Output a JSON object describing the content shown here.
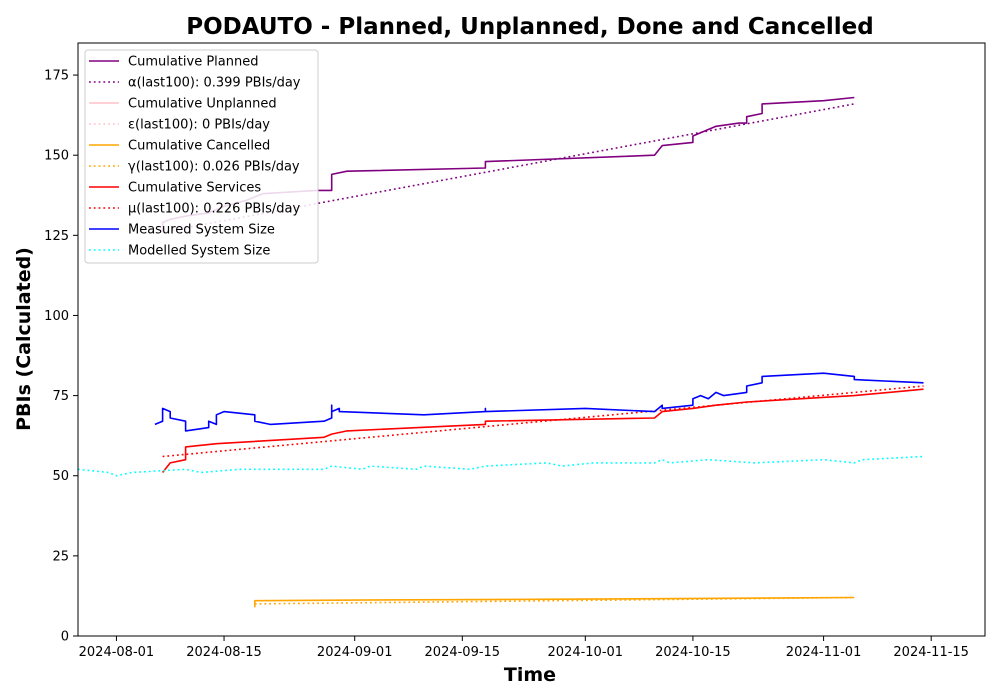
{
  "chart_data": {
    "type": "line",
    "title": "PODAUTO - Planned, Unplanned, Done  and Cancelled",
    "xlabel": "Time",
    "ylabel": "PBIs (Calculated)",
    "xlim": [
      "2024-07-27",
      "2024-11-22"
    ],
    "ylim": [
      0,
      185
    ],
    "x_ticks": [
      "2024-08-01",
      "2024-08-15",
      "2024-09-01",
      "2024-09-15",
      "2024-10-01",
      "2024-10-15",
      "2024-11-01",
      "2024-11-15"
    ],
    "y_ticks": [
      0,
      25,
      50,
      75,
      100,
      125,
      150,
      175
    ],
    "grid": false,
    "legend_position": "top-left",
    "series": [
      {
        "name": "Cumulative Planned",
        "color": "#800080",
        "style": "solid",
        "points": [
          [
            "2024-08-07",
            126
          ],
          [
            "2024-08-07",
            129
          ],
          [
            "2024-08-08",
            130
          ],
          [
            "2024-08-10",
            131
          ],
          [
            "2024-08-13",
            132
          ],
          [
            "2024-08-15",
            134
          ],
          [
            "2024-08-18",
            136
          ],
          [
            "2024-08-20",
            138
          ],
          [
            "2024-08-27",
            139
          ],
          [
            "2024-08-29",
            139
          ],
          [
            "2024-08-29",
            144
          ],
          [
            "2024-08-31",
            145
          ],
          [
            "2024-09-18",
            146
          ],
          [
            "2024-09-18",
            148
          ],
          [
            "2024-10-10",
            150
          ],
          [
            "2024-10-11",
            153
          ],
          [
            "2024-10-15",
            154
          ],
          [
            "2024-10-15",
            156
          ],
          [
            "2024-10-17",
            158
          ],
          [
            "2024-10-18",
            159
          ],
          [
            "2024-10-21",
            160
          ],
          [
            "2024-10-22",
            160
          ],
          [
            "2024-10-22",
            162
          ],
          [
            "2024-10-24",
            163
          ],
          [
            "2024-10-24",
            166
          ],
          [
            "2024-11-01",
            167
          ],
          [
            "2024-11-05",
            168
          ]
        ]
      },
      {
        "name": "α(last100): 0.399 PBIs/day",
        "color": "#800080",
        "style": "dotted",
        "points": [
          [
            "2024-08-07",
            126
          ],
          [
            "2024-11-05",
            166
          ]
        ]
      },
      {
        "name": "Cumulative Unplanned",
        "color": "#ffc0cb",
        "style": "solid",
        "points": []
      },
      {
        "name": "ε(last100): 0 PBIs/day",
        "color": "#ffc0cb",
        "style": "dotted",
        "points": []
      },
      {
        "name": "Cumulative Cancelled",
        "color": "#ffa500",
        "style": "solid",
        "points": [
          [
            "2024-08-19",
            9
          ],
          [
            "2024-08-19",
            11
          ],
          [
            "2024-09-01",
            11.2
          ],
          [
            "2024-10-01",
            11.5
          ],
          [
            "2024-11-05",
            12
          ]
        ]
      },
      {
        "name": "γ(last100): 0.026 PBIs/day",
        "color": "#ffa500",
        "style": "dotted",
        "points": [
          [
            "2024-08-19",
            10
          ],
          [
            "2024-11-05",
            12
          ]
        ]
      },
      {
        "name": "Cumulative Services",
        "color": "#ff0000",
        "style": "solid",
        "points": [
          [
            "2024-08-07",
            51
          ],
          [
            "2024-08-08",
            54
          ],
          [
            "2024-08-10",
            55
          ],
          [
            "2024-08-10",
            59
          ],
          [
            "2024-08-14",
            60
          ],
          [
            "2024-08-28",
            62
          ],
          [
            "2024-08-29",
            63
          ],
          [
            "2024-08-31",
            64
          ],
          [
            "2024-09-18",
            66
          ],
          [
            "2024-09-18",
            67
          ],
          [
            "2024-10-10",
            68
          ],
          [
            "2024-10-11",
            70
          ],
          [
            "2024-10-15",
            71
          ],
          [
            "2024-10-18",
            72
          ],
          [
            "2024-10-22",
            73
          ],
          [
            "2024-11-05",
            75
          ],
          [
            "2024-11-14",
            77
          ]
        ]
      },
      {
        "name": "μ(last100): 0.226 PBIs/day",
        "color": "#ff0000",
        "style": "dotted",
        "points": [
          [
            "2024-08-07",
            56
          ],
          [
            "2024-11-14",
            78
          ]
        ]
      },
      {
        "name": "Measured System Size",
        "color": "#0000ff",
        "style": "solid",
        "points": [
          [
            "2024-08-06",
            66
          ],
          [
            "2024-08-07",
            67
          ],
          [
            "2024-08-07",
            71
          ],
          [
            "2024-08-08",
            70
          ],
          [
            "2024-08-08",
            68
          ],
          [
            "2024-08-10",
            67
          ],
          [
            "2024-08-10",
            64
          ],
          [
            "2024-08-13",
            65
          ],
          [
            "2024-08-13",
            67
          ],
          [
            "2024-08-14",
            66
          ],
          [
            "2024-08-14",
            69
          ],
          [
            "2024-08-15",
            70
          ],
          [
            "2024-08-19",
            69
          ],
          [
            "2024-08-19",
            67
          ],
          [
            "2024-08-21",
            66
          ],
          [
            "2024-08-28",
            67
          ],
          [
            "2024-08-29",
            68
          ],
          [
            "2024-08-29",
            72
          ],
          [
            "2024-08-29",
            70
          ],
          [
            "2024-08-30",
            71
          ],
          [
            "2024-08-30",
            70
          ],
          [
            "2024-09-10",
            69
          ],
          [
            "2024-09-18",
            70
          ],
          [
            "2024-09-18",
            71
          ],
          [
            "2024-09-18",
            70
          ],
          [
            "2024-10-01",
            71
          ],
          [
            "2024-10-10",
            70
          ],
          [
            "2024-10-11",
            72
          ],
          [
            "2024-10-11",
            71
          ],
          [
            "2024-10-15",
            72
          ],
          [
            "2024-10-15",
            74
          ],
          [
            "2024-10-16",
            75
          ],
          [
            "2024-10-17",
            74
          ],
          [
            "2024-10-18",
            76
          ],
          [
            "2024-10-19",
            75
          ],
          [
            "2024-10-22",
            76
          ],
          [
            "2024-10-22",
            78
          ],
          [
            "2024-10-24",
            79
          ],
          [
            "2024-10-24",
            81
          ],
          [
            "2024-11-01",
            82
          ],
          [
            "2024-11-05",
            81
          ],
          [
            "2024-11-05",
            80
          ],
          [
            "2024-11-14",
            79
          ]
        ]
      },
      {
        "name": "Modelled System Size",
        "color": "#00ffff",
        "style": "dotted",
        "points": [
          [
            "2024-07-27",
            52
          ],
          [
            "2024-07-31",
            51
          ],
          [
            "2024-08-01",
            50
          ],
          [
            "2024-08-03",
            51
          ],
          [
            "2024-08-10",
            52
          ],
          [
            "2024-08-12",
            51
          ],
          [
            "2024-08-17",
            52
          ],
          [
            "2024-08-28",
            52
          ],
          [
            "2024-08-29",
            53
          ],
          [
            "2024-09-02",
            52
          ],
          [
            "2024-09-03",
            53
          ],
          [
            "2024-09-09",
            52
          ],
          [
            "2024-09-10",
            53
          ],
          [
            "2024-09-16",
            52
          ],
          [
            "2024-09-18",
            53
          ],
          [
            "2024-09-26",
            54
          ],
          [
            "2024-09-28",
            53
          ],
          [
            "2024-10-02",
            54
          ],
          [
            "2024-10-10",
            54
          ],
          [
            "2024-10-11",
            55
          ],
          [
            "2024-10-12",
            54
          ],
          [
            "2024-10-17",
            55
          ],
          [
            "2024-10-23",
            54
          ],
          [
            "2024-11-01",
            55
          ],
          [
            "2024-11-05",
            54
          ],
          [
            "2024-11-06",
            55
          ],
          [
            "2024-11-14",
            56
          ]
        ]
      }
    ]
  }
}
